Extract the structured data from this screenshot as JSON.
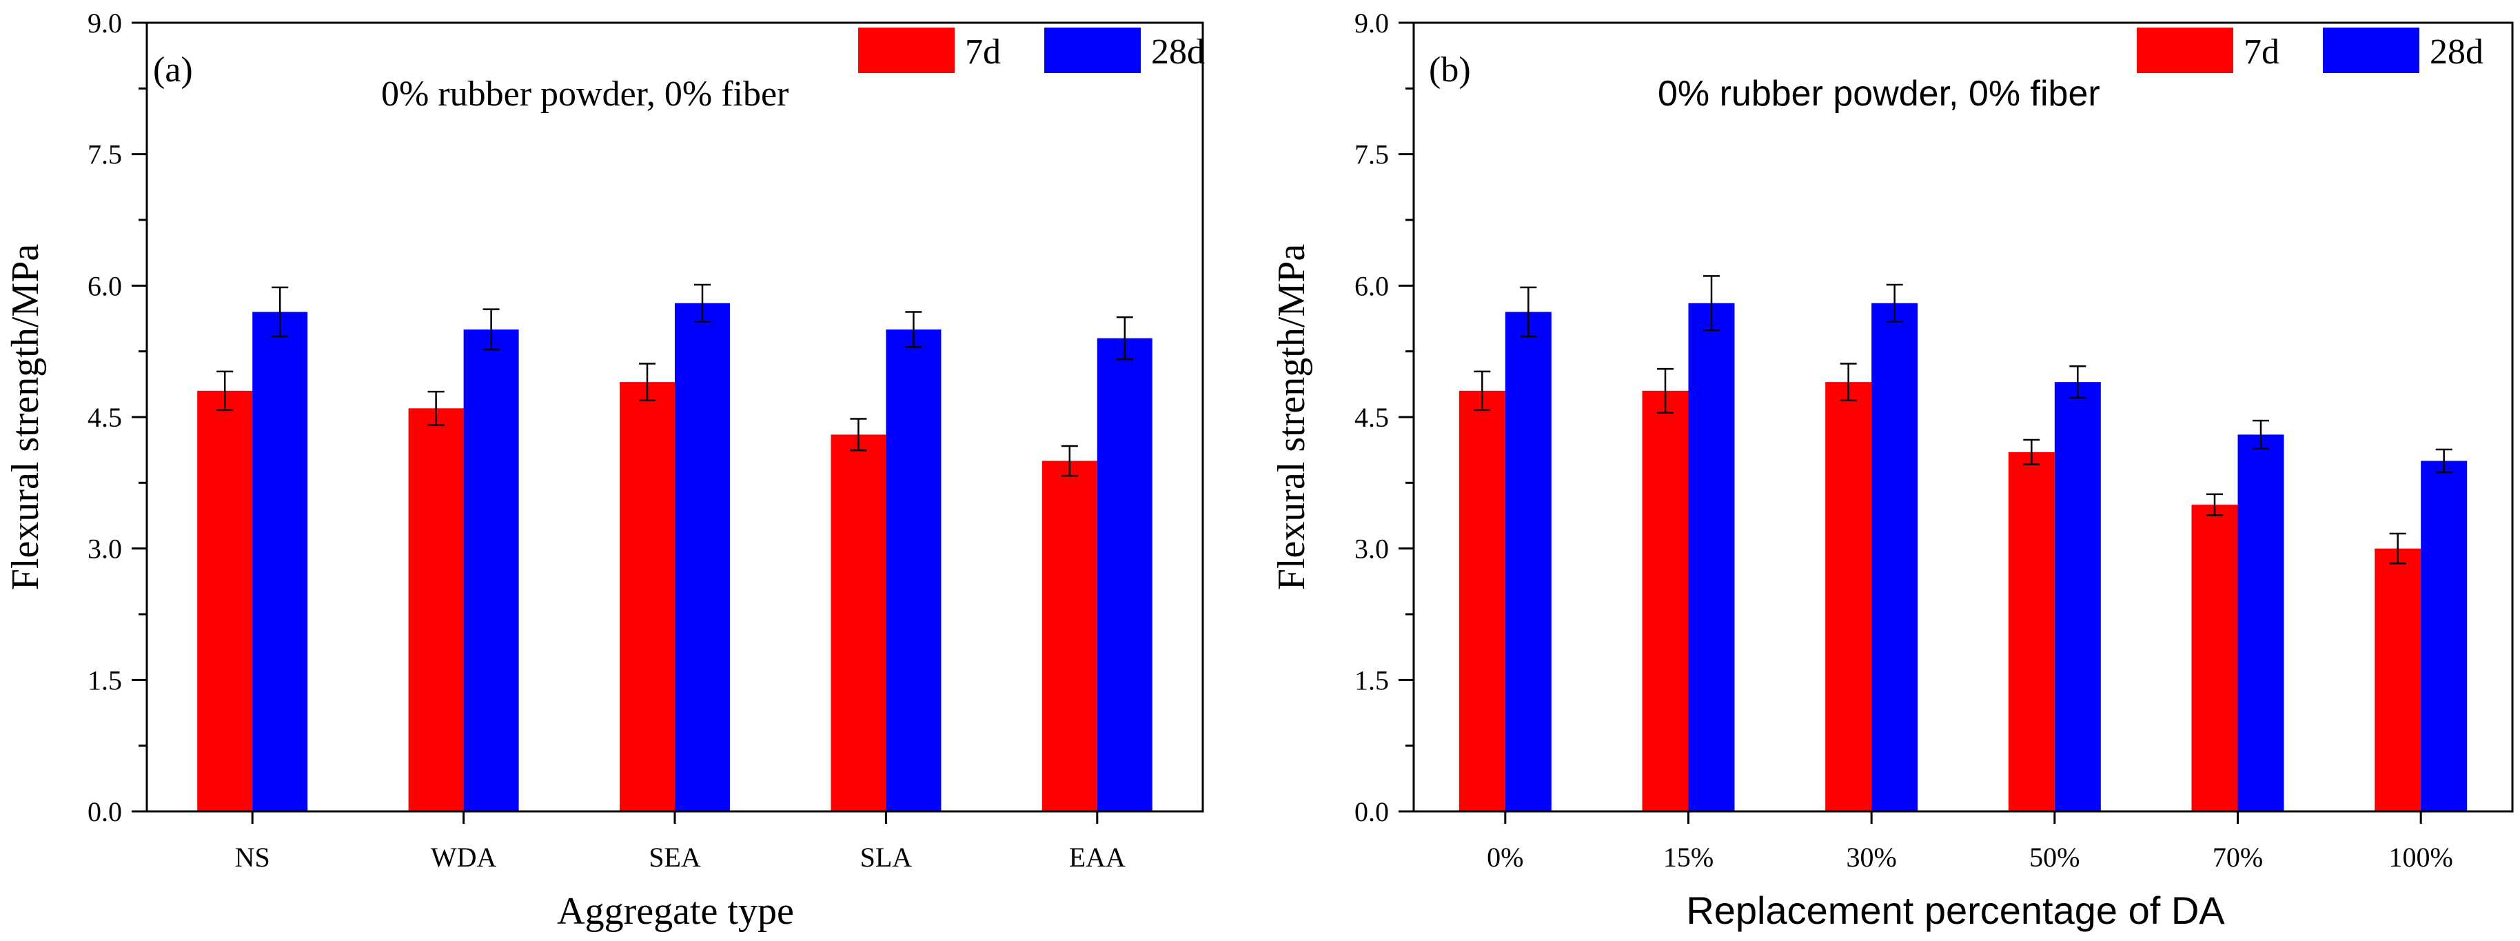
{
  "chart_data": [
    {
      "type": "bar",
      "panel_label": "(a)",
      "annotation": "0% rubber powder, 0% fiber",
      "xlabel": "Aggregate type",
      "ylabel": "Flexural strength/MPa",
      "ylim": [
        0,
        9.0
      ],
      "yticks": [
        "0.0",
        "1.5",
        "3.0",
        "4.5",
        "6.0",
        "7.5",
        "9.0"
      ],
      "categories": [
        "NS",
        "WDA",
        "SEA",
        "SLA",
        "EAA"
      ],
      "series": [
        {
          "name": "7d",
          "color": "#ff0000",
          "values": [
            4.8,
            4.6,
            4.9,
            4.3,
            4.0
          ],
          "errors": [
            0.22,
            0.19,
            0.21,
            0.18,
            0.17
          ]
        },
        {
          "name": "28d",
          "color": "#0000ff",
          "values": [
            5.7,
            5.5,
            5.8,
            5.5,
            5.4
          ],
          "errors": [
            0.28,
            0.23,
            0.21,
            0.2,
            0.24
          ]
        }
      ],
      "legend_position": "top-right"
    },
    {
      "type": "bar",
      "panel_label": "(b)",
      "annotation": "0% rubber powder, 0% fiber",
      "xlabel": "Replacement percentage of DA",
      "ylabel": "Flexural strength/MPa",
      "ylim": [
        0,
        9.0
      ],
      "yticks": [
        "0.0",
        "1.5",
        "3.0",
        "4.5",
        "6.0",
        "7.5",
        "9.0"
      ],
      "categories": [
        "0%",
        "15%",
        "30%",
        "50%",
        "70%",
        "100%"
      ],
      "series": [
        {
          "name": "7d",
          "color": "#ff0000",
          "values": [
            4.8,
            4.8,
            4.9,
            4.1,
            3.5,
            3.0
          ],
          "errors": [
            0.22,
            0.25,
            0.21,
            0.14,
            0.12,
            0.17
          ]
        },
        {
          "name": "28d",
          "color": "#0000ff",
          "values": [
            5.7,
            5.8,
            5.8,
            4.9,
            4.3,
            4.0
          ],
          "errors": [
            0.28,
            0.31,
            0.21,
            0.18,
            0.16,
            0.13
          ]
        }
      ],
      "legend_position": "top-right"
    }
  ]
}
